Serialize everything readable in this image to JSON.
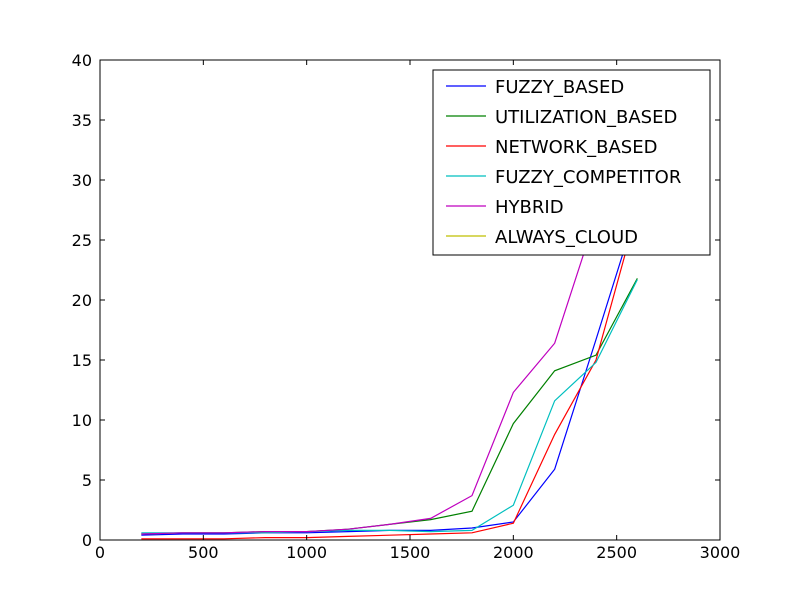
{
  "chart_data": {
    "type": "line",
    "x": [
      200,
      400,
      600,
      800,
      1000,
      1200,
      1400,
      1600,
      1800,
      2000,
      2200,
      2400,
      2600
    ],
    "series": [
      {
        "name": "FUZZY_BASED",
        "color": "#0000ff",
        "values": [
          0.4,
          0.5,
          0.5,
          0.6,
          0.6,
          0.7,
          0.8,
          0.8,
          1.0,
          1.5,
          5.9,
          16.7,
          27.7
        ]
      },
      {
        "name": "UTILIZATION_BASED",
        "color": "#008000",
        "values": [
          0.5,
          0.6,
          0.6,
          0.7,
          0.7,
          0.9,
          1.3,
          1.7,
          2.4,
          9.7,
          14.1,
          15.4,
          21.8
        ]
      },
      {
        "name": "NETWORK_BASED",
        "color": "#ff0000",
        "values": [
          0.1,
          0.1,
          0.1,
          0.2,
          0.2,
          0.3,
          0.4,
          0.5,
          0.6,
          1.4,
          8.8,
          15.0,
          27.5
        ]
      },
      {
        "name": "FUZZY_COMPETITOR",
        "color": "#00bfbf",
        "values": [
          0.6,
          0.6,
          0.6,
          0.6,
          0.7,
          0.8,
          0.8,
          0.7,
          0.8,
          2.9,
          11.6,
          14.8,
          21.7
        ]
      },
      {
        "name": "HYBRID",
        "color": "#bf00bf",
        "values": [
          0.5,
          0.6,
          0.6,
          0.7,
          0.7,
          0.9,
          1.3,
          1.8,
          3.7,
          12.3,
          16.4,
          27.0,
          35.0
        ]
      },
      {
        "name": "ALWAYS_CLOUD",
        "color": "#bfbf00",
        "values": [
          null,
          null,
          null,
          null,
          null,
          null,
          null,
          null,
          null,
          null,
          null,
          null,
          null
        ]
      }
    ],
    "xlim": [
      0,
      3000
    ],
    "xticks": [
      0,
      500,
      1000,
      1500,
      2000,
      2500,
      3000
    ],
    "ylim": [
      0,
      40
    ],
    "yticks": [
      0,
      5,
      10,
      15,
      20,
      25,
      30,
      35,
      40
    ],
    "legend": "upper right"
  }
}
